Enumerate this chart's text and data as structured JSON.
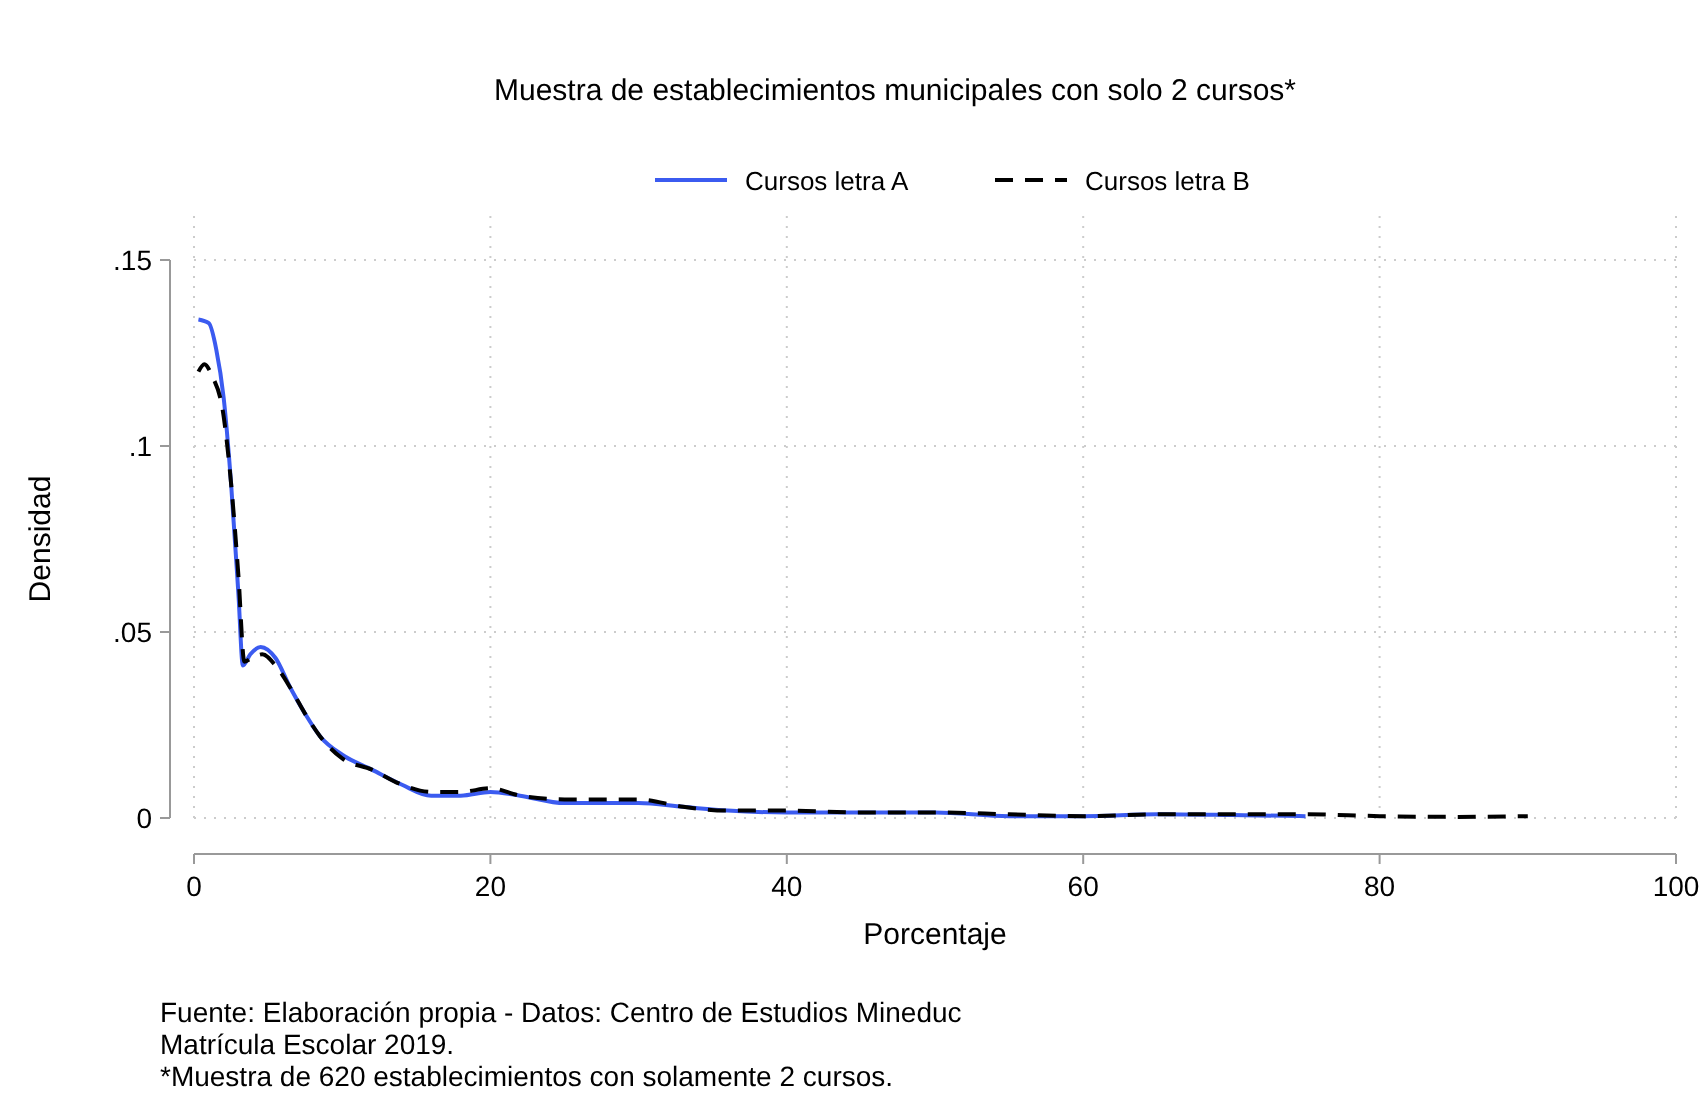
{
  "chart_data": {
    "type": "line",
    "title": "Muestra de establecimientos municipales con solo 2 cursos*",
    "xlabel": "Porcentaje",
    "ylabel": "Densidad",
    "xlim": [
      0,
      100
    ],
    "ylim": [
      0,
      0.15
    ],
    "xticks": [
      0,
      20,
      40,
      60,
      80,
      100
    ],
    "yticks": [
      {
        "value": 0,
        "label": "0"
      },
      {
        "value": 0.05,
        "label": ".05"
      },
      {
        "value": 0.1,
        "label": ".1"
      },
      {
        "value": 0.15,
        "label": ".15"
      }
    ],
    "grid": true,
    "legend": "top",
    "marker": "none",
    "series": [
      {
        "name": "Cursos letra A",
        "color": "#3b5bf0",
        "line_style": "solid",
        "x": [
          0.3,
          1,
          1.5,
          2,
          2.5,
          3,
          3.3,
          3.8,
          4.5,
          5.5,
          6.5,
          7.5,
          8.5,
          10,
          12,
          14,
          16,
          18,
          20,
          22,
          25,
          28,
          30,
          33,
          36,
          40,
          45,
          50,
          55,
          60,
          65,
          70,
          75
        ],
        "values": [
          0.134,
          0.133,
          0.126,
          0.113,
          0.09,
          0.06,
          0.041,
          0.044,
          0.046,
          0.043,
          0.035,
          0.028,
          0.022,
          0.017,
          0.013,
          0.009,
          0.006,
          0.006,
          0.007,
          0.006,
          0.004,
          0.004,
          0.004,
          0.003,
          0.002,
          0.0015,
          0.0015,
          0.0015,
          0.0005,
          0.0005,
          0.001,
          0.0008,
          0.0005
        ]
      },
      {
        "name": "Cursos letra B",
        "color": "#000000",
        "line_style": "dashed",
        "x": [
          0.3,
          0.7,
          1.2,
          2,
          2.5,
          3,
          3.4,
          3.9,
          4.6,
          5.5,
          6.5,
          7.5,
          8.5,
          10,
          12,
          14,
          16,
          18,
          20,
          22,
          25,
          28,
          30,
          33,
          36,
          40,
          45,
          50,
          55,
          60,
          65,
          70,
          75,
          80,
          85,
          90
        ],
        "values": [
          0.12,
          0.122,
          0.119,
          0.108,
          0.09,
          0.065,
          0.042,
          0.043,
          0.044,
          0.041,
          0.035,
          0.028,
          0.022,
          0.016,
          0.013,
          0.009,
          0.007,
          0.007,
          0.008,
          0.006,
          0.005,
          0.005,
          0.005,
          0.003,
          0.002,
          0.002,
          0.0015,
          0.0015,
          0.001,
          0.0005,
          0.001,
          0.001,
          0.001,
          0.0005,
          0.0003,
          0.0005
        ]
      }
    ],
    "annotations": [
      "Fuente: Elaboración propia - Datos: Centro de Estudios Mineduc",
      "Matrícula Escolar 2019.",
      "*Muestra de 620 establecimientos con solamente 2 cursos."
    ]
  }
}
